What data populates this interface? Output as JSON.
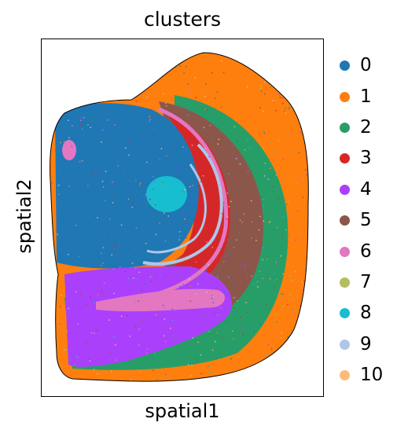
{
  "chart_data": {
    "type": "scatter",
    "title": "clusters",
    "xlabel": "spatial1",
    "ylabel": "spatial2",
    "grid": false,
    "legend_position": "right",
    "series": [
      {
        "name": "0",
        "color": "#1f77b4"
      },
      {
        "name": "1",
        "color": "#ff7f0e"
      },
      {
        "name": "2",
        "color": "#279e68"
      },
      {
        "name": "3",
        "color": "#d62728"
      },
      {
        "name": "4",
        "color": "#aa40fc"
      },
      {
        "name": "5",
        "color": "#8c564b"
      },
      {
        "name": "6",
        "color": "#e377c2"
      },
      {
        "name": "7",
        "color": "#b5bd61"
      },
      {
        "name": "8",
        "color": "#17becf"
      },
      {
        "name": "9",
        "color": "#aec7e8"
      },
      {
        "name": "10",
        "color": "#ffbb78"
      }
    ]
  }
}
